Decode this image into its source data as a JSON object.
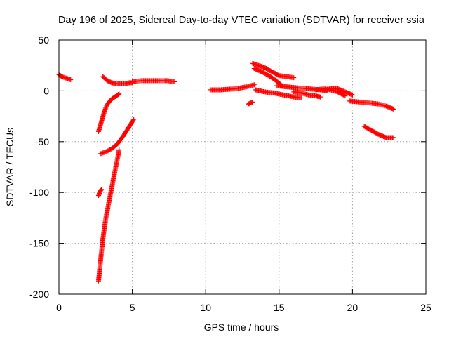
{
  "chart_data": {
    "type": "scatter",
    "title": "Day 196 of 2025, Sidereal Day-to-day VTEC variation (SDTVAR) for receiver ssia",
    "xlabel": "GPS time / hours",
    "ylabel": "SDTVAR / TECUs",
    "xlim": [
      0,
      25
    ],
    "ylim": [
      -200,
      50
    ],
    "x_ticks": [
      0,
      5,
      10,
      15,
      20,
      25
    ],
    "y_ticks": [
      50,
      0,
      -50,
      -100,
      -150,
      -200
    ],
    "grid": true,
    "marker": "+",
    "color": "#ff0000",
    "segments": [
      {
        "x": [
          0.0,
          0.2,
          0.4,
          0.6,
          0.8
        ],
        "y": [
          16,
          14,
          13,
          12,
          11
        ]
      },
      {
        "x": [
          3.0,
          3.3,
          3.6,
          3.9,
          4.2,
          4.5,
          4.8,
          5.0
        ],
        "y": [
          14,
          10,
          8,
          7,
          7,
          7,
          8,
          8
        ]
      },
      {
        "x": [
          5.0,
          5.6,
          6.2,
          6.8,
          7.4,
          7.9
        ],
        "y": [
          9,
          10,
          10,
          10,
          10,
          9
        ]
      },
      {
        "x": [
          2.7,
          2.9,
          3.1,
          3.3,
          3.6,
          3.9,
          4.1
        ],
        "y": [
          -40,
          -30,
          -20,
          -13,
          -8,
          -5,
          -3
        ]
      },
      {
        "x": [
          2.8,
          3.2,
          3.6,
          4.0,
          4.4,
          4.8,
          5.1
        ],
        "y": [
          -62,
          -60,
          -57,
          -52,
          -44,
          -35,
          -28
        ]
      },
      {
        "x": [
          2.7,
          2.8,
          2.9
        ],
        "y": [
          -103,
          -99,
          -97
        ]
      },
      {
        "x": [
          2.7,
          2.85,
          3.0,
          3.2,
          3.4,
          3.6,
          3.8,
          4.0,
          4.1
        ],
        "y": [
          -187,
          -165,
          -145,
          -125,
          -110,
          -95,
          -80,
          -66,
          -58
        ]
      },
      {
        "x": [
          10.3,
          11.0,
          12.0,
          12.8,
          13.3
        ],
        "y": [
          1,
          1,
          2,
          4,
          6
        ]
      },
      {
        "x": [
          12.9,
          13.2
        ],
        "y": [
          -13,
          -11
        ]
      },
      {
        "x": [
          13.2,
          13.6,
          14.0,
          14.5,
          15.0,
          15.5,
          16.0
        ],
        "y": [
          27,
          25,
          23,
          19,
          15,
          14,
          13
        ]
      },
      {
        "x": [
          13.3,
          13.8,
          14.3,
          14.8,
          15.2
        ],
        "y": [
          22,
          19,
          15,
          10,
          5
        ]
      },
      {
        "x": [
          13.4,
          14.0,
          14.6,
          15.3,
          16.0,
          16.5
        ],
        "y": [
          1,
          -1,
          -2,
          -4,
          -6,
          -7
        ]
      },
      {
        "x": [
          14.8,
          15.5,
          16.2,
          17.0,
          17.8,
          18.3
        ],
        "y": [
          5,
          4,
          3,
          2,
          1,
          0
        ]
      },
      {
        "x": [
          16.0,
          16.5,
          17.0,
          17.5,
          17.8
        ],
        "y": [
          -1,
          -2,
          -4,
          -5,
          -6
        ]
      },
      {
        "x": [
          17.5,
          18.0,
          18.5,
          19.0,
          19.5
        ],
        "y": [
          1,
          2,
          1,
          -1,
          -5
        ]
      },
      {
        "x": [
          18.0,
          18.5,
          19.0,
          19.5,
          20.0
        ],
        "y": [
          1,
          2,
          2,
          -1,
          -4
        ]
      },
      {
        "x": [
          19.8,
          20.5,
          21.2,
          21.8,
          22.3,
          22.8
        ],
        "y": [
          -10,
          -11,
          -12,
          -13,
          -15,
          -18
        ]
      },
      {
        "x": [
          20.8,
          21.3,
          21.8,
          22.3,
          22.8
        ],
        "y": [
          -35,
          -39,
          -43,
          -46,
          -46
        ]
      }
    ]
  }
}
